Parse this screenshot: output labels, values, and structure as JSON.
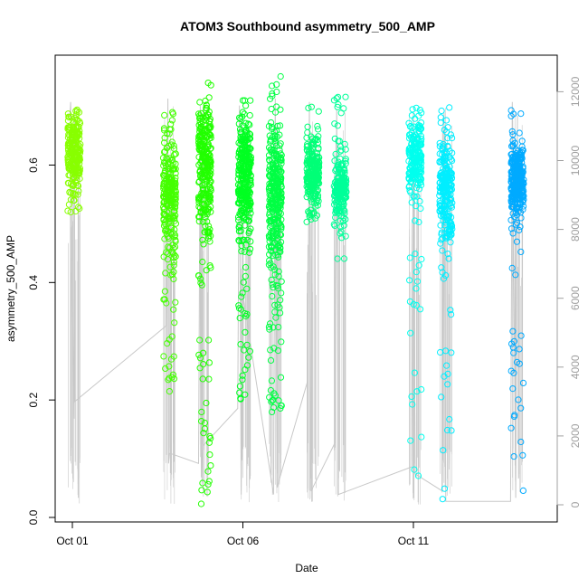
{
  "chart_data": {
    "type": "scatter",
    "title": "ATOM3 Southbound asymmetry_500_AMP",
    "xlabel": "Date",
    "ylabel": "asymmetry_500_AMP",
    "x_ticks": [
      "Oct 01",
      "Oct 06",
      "Oct 11"
    ],
    "x_tick_days": [
      1,
      6,
      11
    ],
    "xlim_days": [
      0.55,
      14.9
    ],
    "y_ticks": [
      "0.0",
      "0.2",
      "0.4",
      "0.6"
    ],
    "ylim": [
      0.0,
      0.77
    ],
    "y2_ticks": [
      "0",
      "2000",
      "4000",
      "6000",
      "8000",
      "10000",
      "12000"
    ],
    "y2lim": [
      0,
      12000
    ],
    "grid": false,
    "legend": "none",
    "point_clusters": [
      {
        "day": 1.05,
        "center": 0.62,
        "spread": 0.05,
        "min": 0.52,
        "max": 0.7,
        "n": 220,
        "color": "#88ff00"
      },
      {
        "day": 3.85,
        "center": 0.55,
        "spread": 0.09,
        "min": 0.2,
        "max": 0.69,
        "n": 250,
        "color": "#44ff00"
      },
      {
        "day": 4.88,
        "center": 0.6,
        "spread": 0.1,
        "min": 0.02,
        "max": 0.74,
        "n": 300,
        "color": "#22ff00"
      },
      {
        "day": 6.05,
        "center": 0.58,
        "spread": 0.09,
        "min": 0.19,
        "max": 0.71,
        "n": 320,
        "color": "#00ff22"
      },
      {
        "day": 6.95,
        "center": 0.55,
        "spread": 0.1,
        "min": 0.17,
        "max": 0.76,
        "n": 340,
        "color": "#00ff44"
      },
      {
        "day": 8.05,
        "center": 0.59,
        "spread": 0.05,
        "min": 0.5,
        "max": 0.7,
        "n": 220,
        "color": "#00ff77"
      },
      {
        "day": 8.85,
        "center": 0.56,
        "spread": 0.05,
        "min": 0.44,
        "max": 0.72,
        "n": 200,
        "color": "#00ff99"
      },
      {
        "day": 11.05,
        "center": 0.61,
        "spread": 0.05,
        "min": 0.04,
        "max": 0.71,
        "n": 220,
        "color": "#00ffee"
      },
      {
        "day": 11.95,
        "center": 0.56,
        "spread": 0.07,
        "min": 0.02,
        "max": 0.72,
        "n": 250,
        "color": "#00eeff"
      },
      {
        "day": 14.05,
        "center": 0.57,
        "spread": 0.05,
        "min": 0.02,
        "max": 0.71,
        "n": 320,
        "color": "#00aaff"
      }
    ],
    "count_series": {
      "name": "",
      "color": "#c8c8c8",
      "points": [
        [
          0.92,
          11200
        ],
        [
          0.95,
          11700
        ],
        [
          1.0,
          6000
        ],
        [
          1.05,
          2500
        ],
        [
          1.06,
          11500
        ],
        [
          1.07,
          3000
        ],
        [
          3.75,
          5200
        ],
        [
          3.8,
          11800
        ],
        [
          3.82,
          1200
        ],
        [
          3.85,
          1500
        ],
        [
          4.7,
          1200
        ],
        [
          4.75,
          11600
        ],
        [
          4.78,
          800
        ],
        [
          4.82,
          1700
        ],
        [
          5.85,
          2800
        ],
        [
          5.9,
          11600
        ],
        [
          5.95,
          300
        ],
        [
          6.0,
          6100
        ],
        [
          6.9,
          300
        ],
        [
          6.95,
          11800
        ],
        [
          7.0,
          500
        ],
        [
          7.9,
          3600
        ],
        [
          7.95,
          11700
        ],
        [
          8.0,
          400
        ],
        [
          8.7,
          1800
        ],
        [
          8.75,
          11500
        ],
        [
          8.8,
          300
        ],
        [
          10.95,
          1100
        ],
        [
          11.0,
          11400
        ],
        [
          11.05,
          900
        ],
        [
          11.85,
          400
        ],
        [
          11.9,
          11400
        ],
        [
          11.95,
          100
        ],
        [
          13.85,
          100
        ],
        [
          13.9,
          11700
        ],
        [
          14.0,
          200
        ],
        [
          14.05,
          11300
        ]
      ]
    }
  }
}
